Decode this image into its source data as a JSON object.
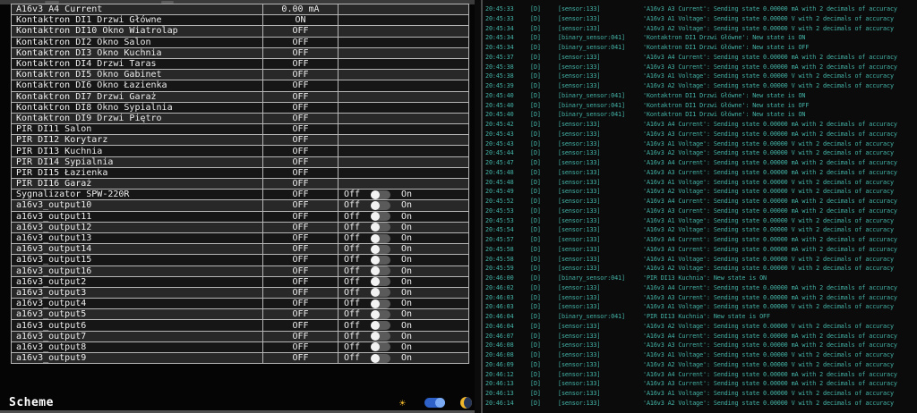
{
  "colors": {
    "log_text": "#43b2a6",
    "accent_blue": "#2e62c9",
    "sun_yellow": "#f1b72c",
    "row_light": "#282828",
    "row_dark": "#161616",
    "table_border": "#b7b7b7"
  },
  "left_panel": {
    "toggle_off_label": "Off",
    "toggle_on_label": "On",
    "scheme_label": "Scheme",
    "rows": [
      {
        "name": "A16v3 A4 Current",
        "state": "0.00 mA",
        "control": "none"
      },
      {
        "name": "Kontaktron DI1 Drzwi Główne",
        "state": "ON",
        "control": "none"
      },
      {
        "name": "Kontaktron DI10 Okno Wiatrolap",
        "state": "OFF",
        "control": "none"
      },
      {
        "name": "Kontaktron DI2 Okno Salon",
        "state": "OFF",
        "control": "none"
      },
      {
        "name": "Kontaktron DI3 Okno Kuchnia",
        "state": "OFF",
        "control": "none"
      },
      {
        "name": "Kontaktron DI4 Drzwi Taras",
        "state": "OFF",
        "control": "none"
      },
      {
        "name": "Kontaktron DI5 Okno Gabinet",
        "state": "OFF",
        "control": "none"
      },
      {
        "name": "Kontaktron DI6 Okno Łazienka",
        "state": "OFF",
        "control": "none"
      },
      {
        "name": "Kontaktron DI7 Drzwi Garaż",
        "state": "OFF",
        "control": "none"
      },
      {
        "name": "Kontaktron DI8 Okno Sypialnia",
        "state": "OFF",
        "control": "none"
      },
      {
        "name": "Kontaktron DI9 Drzwi Piętro",
        "state": "OFF",
        "control": "none"
      },
      {
        "name": "PIR DI11 Salon",
        "state": "OFF",
        "control": "none"
      },
      {
        "name": "PIR DI12 Korytarz",
        "state": "OFF",
        "control": "none"
      },
      {
        "name": "PIR DI13 Kuchnia",
        "state": "OFF",
        "control": "none"
      },
      {
        "name": "PIR DI14 Sypialnia",
        "state": "OFF",
        "control": "none"
      },
      {
        "name": "PIR DI15 Łazienka",
        "state": "OFF",
        "control": "none"
      },
      {
        "name": "PIR DI16 Garaż",
        "state": "OFF",
        "control": "none"
      },
      {
        "name": "Sygnalizator SPW-220R",
        "state": "OFF",
        "control": "toggle"
      },
      {
        "name": "a16v3_output10",
        "state": "OFF",
        "control": "toggle"
      },
      {
        "name": "a16v3_output11",
        "state": "OFF",
        "control": "toggle"
      },
      {
        "name": "a16v3_output12",
        "state": "OFF",
        "control": "toggle"
      },
      {
        "name": "a16v3_output13",
        "state": "OFF",
        "control": "toggle"
      },
      {
        "name": "a16v3_output14",
        "state": "OFF",
        "control": "toggle"
      },
      {
        "name": "a16v3_output15",
        "state": "OFF",
        "control": "toggle"
      },
      {
        "name": "a16v3_output16",
        "state": "OFF",
        "control": "toggle"
      },
      {
        "name": "a16v3_output2",
        "state": "OFF",
        "control": "toggle"
      },
      {
        "name": "a16v3_output3",
        "state": "OFF",
        "control": "toggle"
      },
      {
        "name": "a16v3_output4",
        "state": "OFF",
        "control": "toggle"
      },
      {
        "name": "a16v3_output5",
        "state": "OFF",
        "control": "toggle"
      },
      {
        "name": "a16v3_output6",
        "state": "OFF",
        "control": "toggle"
      },
      {
        "name": "a16v3_output7",
        "state": "OFF",
        "control": "toggle"
      },
      {
        "name": "a16v3_output8",
        "state": "OFF",
        "control": "toggle"
      },
      {
        "name": "a16v3_output9",
        "state": "OFF",
        "control": "toggle"
      }
    ]
  },
  "log_panel": {
    "entries": [
      {
        "time": "20:45:33",
        "level": "[D]",
        "tag": "[sensor:133]",
        "message": "'A16v3 A3 Current': Sending state 0.00000 mA with 2 decimals of accuracy"
      },
      {
        "time": "20:45:33",
        "level": "[D]",
        "tag": "[sensor:133]",
        "message": "'A16v3 A1 Voltage': Sending state 0.00000 V with 2 decimals of accuracy"
      },
      {
        "time": "20:45:34",
        "level": "[D]",
        "tag": "[sensor:133]",
        "message": "'A16v3 A2 Voltage': Sending state 0.00000 V with 2 decimals of accuracy"
      },
      {
        "time": "20:45:34",
        "level": "[D]",
        "tag": "[binary_sensor:041]",
        "message": "'Kontaktron DI1 Drzwi Główne': New state is ON"
      },
      {
        "time": "20:45:34",
        "level": "[D]",
        "tag": "[binary_sensor:041]",
        "message": "'Kontaktron DI1 Drzwi Główne': New state is OFF"
      },
      {
        "time": "20:45:37",
        "level": "[D]",
        "tag": "[sensor:133]",
        "message": "'A16v3 A4 Current': Sending state 0.00000 mA with 2 decimals of accuracy"
      },
      {
        "time": "20:45:38",
        "level": "[D]",
        "tag": "[sensor:133]",
        "message": "'A16v3 A3 Current': Sending state 0.00000 mA with 2 decimals of accuracy"
      },
      {
        "time": "20:45:38",
        "level": "[D]",
        "tag": "[sensor:133]",
        "message": "'A16v3 A1 Voltage': Sending state 0.00000 V with 2 decimals of accuracy"
      },
      {
        "time": "20:45:39",
        "level": "[D]",
        "tag": "[sensor:133]",
        "message": "'A16v3 A2 Voltage': Sending state 0.00000 V with 2 decimals of accuracy"
      },
      {
        "time": "20:45:40",
        "level": "[D]",
        "tag": "[binary_sensor:041]",
        "message": "'Kontaktron DI1 Drzwi Główne': New state is ON"
      },
      {
        "time": "20:45:40",
        "level": "[D]",
        "tag": "[binary_sensor:041]",
        "message": "'Kontaktron DI1 Drzwi Główne': New state is OFF"
      },
      {
        "time": "20:45:40",
        "level": "[D]",
        "tag": "[binary_sensor:041]",
        "message": "'Kontaktron DI1 Drzwi Główne': New state is ON"
      },
      {
        "time": "20:45:42",
        "level": "[D]",
        "tag": "[sensor:133]",
        "message": "'A16v3 A4 Current': Sending state 0.00000 mA with 2 decimals of accuracy"
      },
      {
        "time": "20:45:43",
        "level": "[D]",
        "tag": "[sensor:133]",
        "message": "'A16v3 A3 Current': Sending state 0.00000 mA with 2 decimals of accuracy"
      },
      {
        "time": "20:45:43",
        "level": "[D]",
        "tag": "[sensor:133]",
        "message": "'A16v3 A1 Voltage': Sending state 0.00000 V with 2 decimals of accuracy"
      },
      {
        "time": "20:45:44",
        "level": "[D]",
        "tag": "[sensor:133]",
        "message": "'A16v3 A2 Voltage': Sending state 0.00000 V with 2 decimals of accuracy"
      },
      {
        "time": "20:45:47",
        "level": "[D]",
        "tag": "[sensor:133]",
        "message": "'A16v3 A4 Current': Sending state 0.00000 mA with 2 decimals of accuracy"
      },
      {
        "time": "20:45:48",
        "level": "[D]",
        "tag": "[sensor:133]",
        "message": "'A16v3 A3 Current': Sending state 0.00000 mA with 2 decimals of accuracy"
      },
      {
        "time": "20:45:48",
        "level": "[D]",
        "tag": "[sensor:133]",
        "message": "'A16v3 A1 Voltage': Sending state 0.00000 V with 2 decimals of accuracy"
      },
      {
        "time": "20:45:49",
        "level": "[D]",
        "tag": "[sensor:133]",
        "message": "'A16v3 A2 Voltage': Sending state 0.00000 V with 2 decimals of accuracy"
      },
      {
        "time": "20:45:52",
        "level": "[D]",
        "tag": "[sensor:133]",
        "message": "'A16v3 A4 Current': Sending state 0.00000 mA with 2 decimals of accuracy"
      },
      {
        "time": "20:45:53",
        "level": "[D]",
        "tag": "[sensor:133]",
        "message": "'A16v3 A3 Current': Sending state 0.00000 mA with 2 decimals of accuracy"
      },
      {
        "time": "20:45:53",
        "level": "[D]",
        "tag": "[sensor:133]",
        "message": "'A16v3 A1 Voltage': Sending state 0.00000 V with 2 decimals of accuracy"
      },
      {
        "time": "20:45:54",
        "level": "[D]",
        "tag": "[sensor:133]",
        "message": "'A16v3 A2 Voltage': Sending state 0.00000 V with 2 decimals of accuracy"
      },
      {
        "time": "20:45:57",
        "level": "[D]",
        "tag": "[sensor:133]",
        "message": "'A16v3 A4 Current': Sending state 0.00000 mA with 2 decimals of accuracy"
      },
      {
        "time": "20:45:58",
        "level": "[D]",
        "tag": "[sensor:133]",
        "message": "'A16v3 A3 Current': Sending state 0.00000 mA with 2 decimals of accuracy"
      },
      {
        "time": "20:45:58",
        "level": "[D]",
        "tag": "[sensor:133]",
        "message": "'A16v3 A1 Voltage': Sending state 0.00000 V with 2 decimals of accuracy"
      },
      {
        "time": "20:45:59",
        "level": "[D]",
        "tag": "[sensor:133]",
        "message": "'A16v3 A2 Voltage': Sending state 0.00000 V with 2 decimals of accuracy"
      },
      {
        "time": "20:46:00",
        "level": "[D]",
        "tag": "[binary_sensor:041]",
        "message": "'PIR DI13 Kuchnia': New state is ON"
      },
      {
        "time": "20:46:02",
        "level": "[D]",
        "tag": "[sensor:133]",
        "message": "'A16v3 A4 Current': Sending state 0.00000 mA with 2 decimals of accuracy"
      },
      {
        "time": "20:46:03",
        "level": "[D]",
        "tag": "[sensor:133]",
        "message": "'A16v3 A3 Current': Sending state 0.00000 mA with 2 decimals of accuracy"
      },
      {
        "time": "20:46:03",
        "level": "[D]",
        "tag": "[sensor:133]",
        "message": "'A16v3 A1 Voltage': Sending state 0.00000 V with 2 decimals of accuracy"
      },
      {
        "time": "20:46:04",
        "level": "[D]",
        "tag": "[binary_sensor:041]",
        "message": "'PIR DI13 Kuchnia': New state is OFF"
      },
      {
        "time": "20:46:04",
        "level": "[D]",
        "tag": "[sensor:133]",
        "message": "'A16v3 A2 Voltage': Sending state 0.00000 V with 2 decimals of accuracy"
      },
      {
        "time": "20:46:07",
        "level": "[D]",
        "tag": "[sensor:133]",
        "message": "'A16v3 A4 Current': Sending state 0.00000 mA with 2 decimals of accuracy"
      },
      {
        "time": "20:46:08",
        "level": "[D]",
        "tag": "[sensor:133]",
        "message": "'A16v3 A3 Current': Sending state 0.00000 mA with 2 decimals of accuracy"
      },
      {
        "time": "20:46:08",
        "level": "[D]",
        "tag": "[sensor:133]",
        "message": "'A16v3 A1 Voltage': Sending state 0.00000 V with 2 decimals of accuracy"
      },
      {
        "time": "20:46:09",
        "level": "[D]",
        "tag": "[sensor:133]",
        "message": "'A16v3 A2 Voltage': Sending state 0.00000 V with 2 decimals of accuracy"
      },
      {
        "time": "20:46:12",
        "level": "[D]",
        "tag": "[sensor:133]",
        "message": "'A16v3 A4 Current': Sending state 0.00000 mA with 2 decimals of accuracy"
      },
      {
        "time": "20:46:13",
        "level": "[D]",
        "tag": "[sensor:133]",
        "message": "'A16v3 A3 Current': Sending state 0.00000 mA with 2 decimals of accuracy"
      },
      {
        "time": "20:46:13",
        "level": "[D]",
        "tag": "[sensor:133]",
        "message": "'A16v3 A1 Voltage': Sending state 0.00000 V with 2 decimals of accuracy"
      },
      {
        "time": "20:46:14",
        "level": "[D]",
        "tag": "[sensor:133]",
        "message": "'A16v3 A2 Voltage': Sending state 0.00000 V with 2 decimals of accuracy"
      }
    ]
  }
}
